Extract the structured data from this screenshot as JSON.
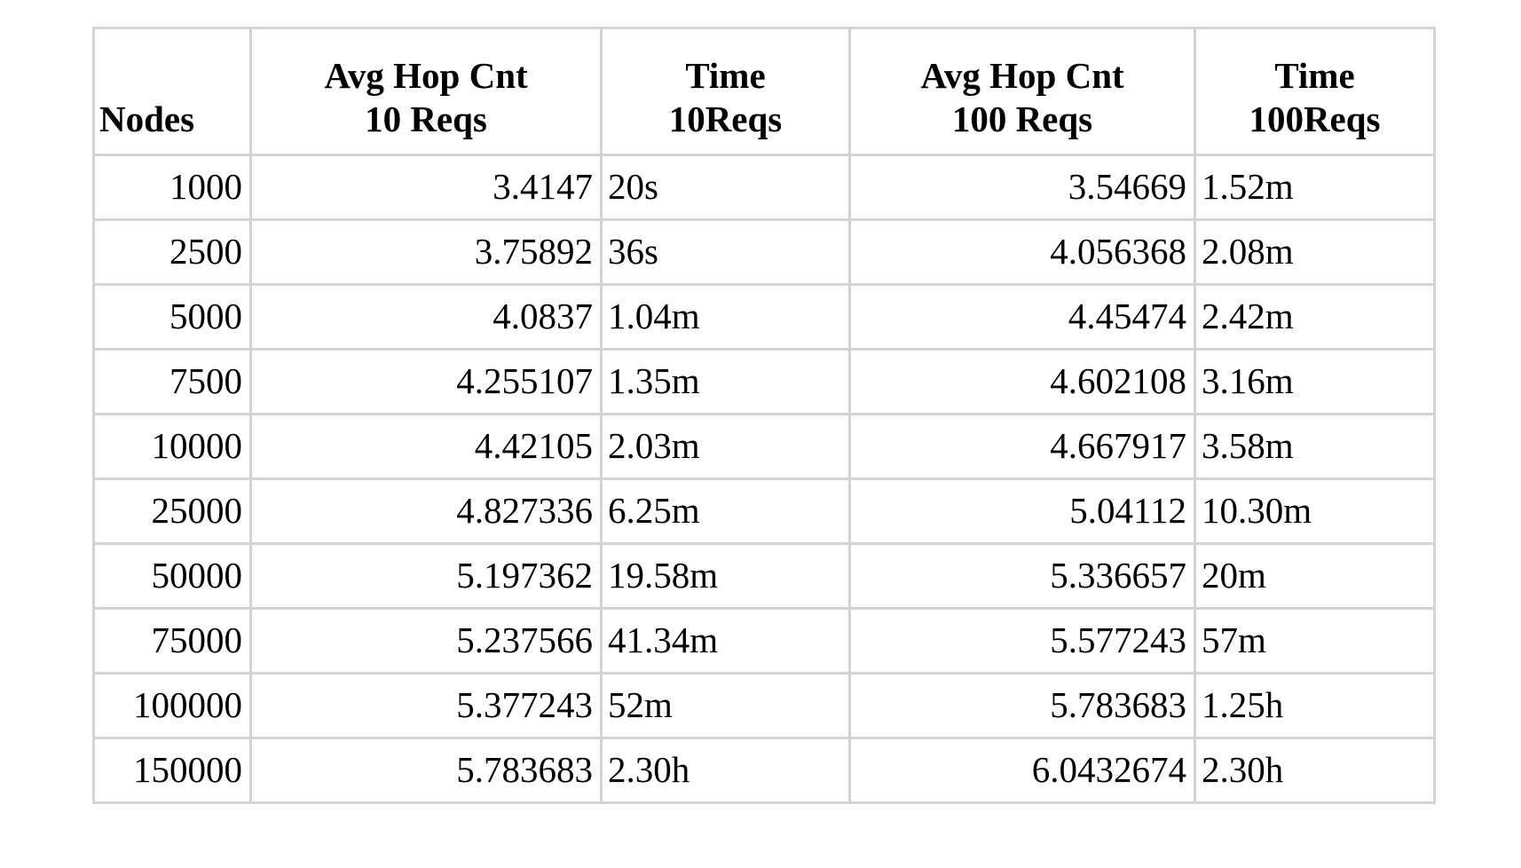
{
  "table": {
    "headers": {
      "nodes": "Nodes",
      "hop10": {
        "line1": "Avg Hop Cnt",
        "line2": "10 Reqs"
      },
      "time10": {
        "line1": "Time",
        "line2": "10Reqs"
      },
      "hop100": {
        "line1": "Avg Hop Cnt",
        "line2": "100 Reqs"
      },
      "time100": {
        "line1": "Time",
        "line2": "100Reqs"
      }
    },
    "rows": [
      {
        "nodes": "1000",
        "hop10": "3.4147",
        "time10": "20s",
        "hop100": "3.54669",
        "time100": "1.52m"
      },
      {
        "nodes": "2500",
        "hop10": "3.75892",
        "time10": "36s",
        "hop100": "4.056368",
        "time100": "2.08m"
      },
      {
        "nodes": "5000",
        "hop10": "4.0837",
        "time10": "1.04m",
        "hop100": "4.45474",
        "time100": "2.42m"
      },
      {
        "nodes": "7500",
        "hop10": "4.255107",
        "time10": "1.35m",
        "hop100": "4.602108",
        "time100": "3.16m"
      },
      {
        "nodes": "10000",
        "hop10": "4.42105",
        "time10": "2.03m",
        "hop100": "4.667917",
        "time100": "3.58m"
      },
      {
        "nodes": "25000",
        "hop10": "4.827336",
        "time10": "6.25m",
        "hop100": "5.04112",
        "time100": "10.30m"
      },
      {
        "nodes": "50000",
        "hop10": "5.197362",
        "time10": "19.58m",
        "hop100": "5.336657",
        "time100": "20m"
      },
      {
        "nodes": "75000",
        "hop10": "5.237566",
        "time10": "41.34m",
        "hop100": "5.577243",
        "time100": "57m"
      },
      {
        "nodes": "100000",
        "hop10": "5.377243",
        "time10": "52m",
        "hop100": "5.783683",
        "time100": "1.25h"
      },
      {
        "nodes": "150000",
        "hop10": "5.783683",
        "time10": "2.30h",
        "hop100": "6.0432674",
        "time100": "2.30h"
      }
    ]
  }
}
